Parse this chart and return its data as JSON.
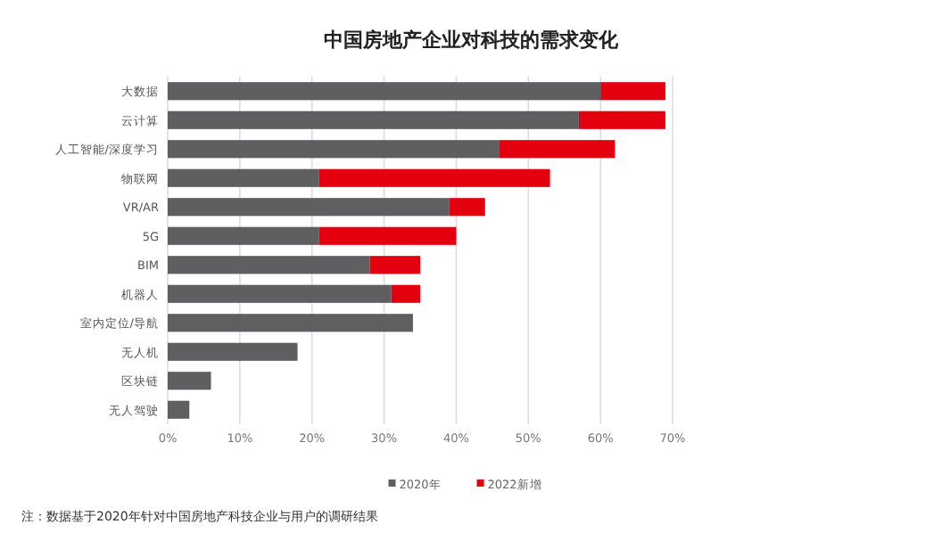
{
  "chart_data": {
    "type": "bar",
    "orientation": "horizontal",
    "stacked": true,
    "title": "中国房地产企业对科技的需求变化",
    "categories": [
      "大数据",
      "云计算",
      "人工智能/深度学习",
      "物联网",
      "VR/AR",
      "5G",
      "BIM",
      "机器人",
      "室内定位/导航",
      "无人机",
      "区块链",
      "无人驾驶"
    ],
    "series": [
      {
        "name": "2020年",
        "color": "#5f5f62",
        "values": [
          60,
          57,
          46,
          21,
          39,
          21,
          28,
          31,
          34,
          18,
          6,
          3
        ]
      },
      {
        "name": "2022新增",
        "color": "#e3000f",
        "values": [
          9,
          12,
          16,
          32,
          5,
          19,
          7,
          4,
          null,
          null,
          null,
          null
        ]
      }
    ],
    "xlim": [
      0,
      70
    ],
    "xticks": [
      {
        "value": 0,
        "label": "0%"
      },
      {
        "value": 10,
        "label": "10%"
      },
      {
        "value": 20,
        "label": "20%"
      },
      {
        "value": 30,
        "label": "30%"
      },
      {
        "value": 40,
        "label": "40%"
      },
      {
        "value": 50,
        "label": "50%"
      },
      {
        "value": 60,
        "label": "60%"
      },
      {
        "value": 70,
        "label": "70%"
      }
    ],
    "grid": "x",
    "legend": "bottom",
    "annotations": [
      "注：数据基于2020年针对中国房地产科技企业与用户的调研结果"
    ]
  }
}
